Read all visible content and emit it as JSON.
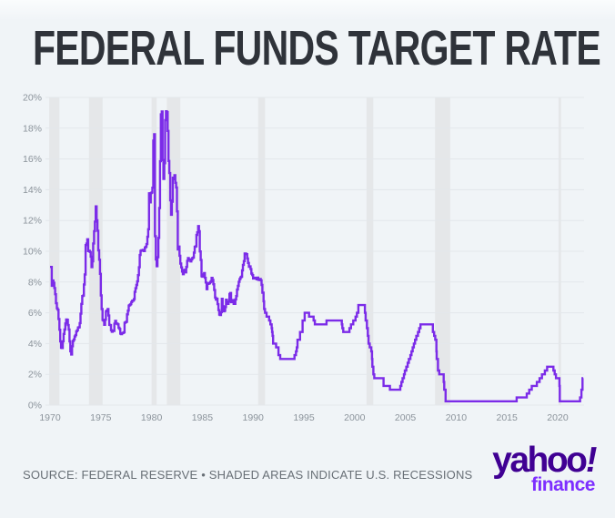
{
  "title": "FEDERAL FUNDS TARGET RATE",
  "footer": {
    "source_text": "SOURCE: FEDERAL RESERVE • SHADED AREAS INDICATE U.S. RECESSIONS"
  },
  "branding": {
    "yahoo": "yahoo",
    "bang": "!",
    "finance": "finance",
    "yahoo_color": "#400093",
    "finance_color": "#7d2eff"
  },
  "chart_data": {
    "type": "line",
    "title": "FEDERAL FUNDS TARGET RATE",
    "xlabel": "",
    "ylabel": "",
    "xlim": [
      1969.55,
      2022.6
    ],
    "ylim": [
      0,
      20
    ],
    "y_tick_step": 2,
    "y_tick_suffix": "%",
    "x_ticks": [
      1970,
      1975,
      1980,
      1985,
      1990,
      1995,
      2000,
      2005,
      2010,
      2015,
      2020
    ],
    "grid": true,
    "legend": "none",
    "line_color": "#7b2be8",
    "recession_band_color": "#e5e7e9",
    "grid_color": "#e3e7eb",
    "axis_label_color": "#8b939b",
    "recessions": [
      [
        1969.92,
        1970.92
      ],
      [
        1973.83,
        1975.17
      ],
      [
        1980.0,
        1980.5
      ],
      [
        1981.5,
        1982.83
      ],
      [
        1990.5,
        1991.17
      ],
      [
        2001.17,
        2001.83
      ],
      [
        2007.92,
        2009.42
      ],
      [
        2020.08,
        2020.33
      ]
    ],
    "series": [
      {
        "name": "Federal Funds Target Rate",
        "monthly": {
          "start_year": 1970,
          "values_by_year": [
            [
              8.98,
              8.98,
              7.76,
              8.1,
              7.95,
              7.61,
              7.21,
              6.62,
              6.29,
              6.2,
              5.6,
              4.9
            ],
            [
              4.14,
              3.72,
              3.71,
              4.15,
              4.63,
              4.91,
              5.31,
              5.57,
              5.55,
              5.2,
              4.91,
              4.14
            ],
            [
              3.5,
              3.29,
              3.83,
              4.17,
              4.27,
              4.46,
              4.55,
              4.8,
              4.87,
              5.04,
              5.06,
              5.33
            ],
            [
              5.94,
              6.58,
              7.09,
              7.12,
              7.84,
              8.49,
              10.4,
              10.5,
              10.78,
              10.01,
              10.03,
              9.95
            ],
            [
              9.65,
              8.97,
              9.35,
              10.51,
              11.31,
              11.93,
              12.92,
              12.01,
              11.34,
              10.06,
              9.45,
              8.53
            ],
            [
              7.13,
              6.24,
              5.54,
              5.49,
              5.22,
              5.55,
              6.1,
              6.14,
              6.24,
              5.82,
              5.22,
              5.2
            ],
            [
              4.87,
              4.77,
              4.84,
              4.82,
              5.29,
              5.48,
              5.31,
              5.29,
              5.25,
              5.03,
              4.95,
              4.65
            ],
            [
              4.61,
              4.68,
              4.69,
              4.73,
              5.35,
              5.39,
              5.42,
              5.9,
              6.14,
              6.47,
              6.51,
              6.56
            ],
            [
              6.7,
              6.78,
              6.79,
              6.89,
              7.36,
              7.6,
              7.81,
              8.04,
              8.45,
              8.96,
              9.76,
              10.03
            ],
            [
              10.07,
              10.06,
              10.09,
              10.01,
              10.24,
              10.29,
              10.47,
              10.94,
              11.43,
              13.77,
              13.18,
              13.78
            ],
            [
              13.82,
              14.13,
              17.19,
              17.61,
              10.98,
              9.47,
              9.03,
              9.61,
              10.87,
              12.81,
              15.85,
              18.9
            ],
            [
              19.08,
              15.93,
              14.7,
              15.72,
              18.52,
              19.1,
              19.04,
              17.82,
              15.87,
              15.08,
              13.31,
              12.37
            ],
            [
              13.22,
              14.78,
              14.68,
              14.94,
              14.45,
              14.15,
              12.59,
              10.12,
              10.31,
              9.71,
              9.2,
              8.95
            ],
            [
              8.68,
              8.51,
              8.77,
              8.8,
              8.63,
              8.98,
              9.37,
              9.56,
              9.45,
              9.48,
              9.34,
              9.47
            ],
            [
              9.56,
              9.59,
              9.91,
              10.29,
              10.32,
              11.06,
              11.23,
              11.64,
              11.3,
              9.99,
              9.43,
              8.38
            ],
            [
              8.35,
              8.5,
              8.58,
              8.27,
              7.97,
              7.53,
              7.88,
              7.9,
              7.92,
              7.99,
              8.05,
              8.27
            ],
            [
              8.14,
              7.86,
              7.48,
              6.99,
              6.85,
              6.92,
              6.56,
              6.17,
              5.89,
              5.85,
              6.04,
              6.91
            ],
            [
              6.43,
              6.1,
              6.13,
              6.37,
              6.85,
              6.73,
              6.58,
              6.73,
              7.22,
              7.29,
              6.69,
              6.77
            ],
            [
              6.83,
              6.58,
              6.58,
              6.87,
              7.09,
              7.51,
              7.75,
              8.01,
              8.19,
              8.3,
              8.35,
              8.76
            ],
            [
              9.12,
              9.36,
              9.85,
              9.84,
              9.81,
              9.53,
              9.24,
              8.99,
              9.02,
              8.84,
              8.55,
              8.45
            ],
            [
              8.23,
              8.24,
              8.28,
              8.26,
              8.18,
              8.29,
              8.15,
              8.13,
              8.2,
              8.11,
              7.81,
              7.31
            ]
          ]
        },
        "step_changes": [
          [
            1991.03,
            6.75
          ],
          [
            1991.08,
            6.25
          ],
          [
            1991.17,
            6.0
          ],
          [
            1991.33,
            5.75
          ],
          [
            1991.58,
            5.5
          ],
          [
            1991.7,
            5.25
          ],
          [
            1991.83,
            5.0
          ],
          [
            1991.87,
            4.75
          ],
          [
            1991.92,
            4.5
          ],
          [
            1991.97,
            4.0
          ],
          [
            1992.27,
            3.75
          ],
          [
            1992.5,
            3.25
          ],
          [
            1992.67,
            3.0
          ],
          [
            1994.08,
            3.25
          ],
          [
            1994.22,
            3.5
          ],
          [
            1994.3,
            3.75
          ],
          [
            1994.37,
            4.25
          ],
          [
            1994.62,
            4.75
          ],
          [
            1994.87,
            5.5
          ],
          [
            1995.08,
            6.0
          ],
          [
            1995.51,
            5.75
          ],
          [
            1995.96,
            5.5
          ],
          [
            1996.08,
            5.25
          ],
          [
            1997.23,
            5.5
          ],
          [
            1998.74,
            5.25
          ],
          [
            1998.79,
            5.0
          ],
          [
            1998.88,
            4.75
          ],
          [
            1999.49,
            5.0
          ],
          [
            1999.64,
            5.25
          ],
          [
            1999.87,
            5.5
          ],
          [
            2000.09,
            5.75
          ],
          [
            2000.22,
            6.0
          ],
          [
            2000.37,
            6.5
          ],
          [
            2001.01,
            6.0
          ],
          [
            2001.08,
            5.5
          ],
          [
            2001.21,
            5.0
          ],
          [
            2001.3,
            4.5
          ],
          [
            2001.37,
            4.0
          ],
          [
            2001.49,
            3.75
          ],
          [
            2001.64,
            3.5
          ],
          [
            2001.71,
            3.0
          ],
          [
            2001.75,
            2.5
          ],
          [
            2001.85,
            2.0
          ],
          [
            2001.94,
            1.75
          ],
          [
            2002.85,
            1.25
          ],
          [
            2003.48,
            1.0
          ],
          [
            2004.5,
            1.25
          ],
          [
            2004.61,
            1.5
          ],
          [
            2004.72,
            1.75
          ],
          [
            2004.86,
            2.0
          ],
          [
            2004.95,
            2.25
          ],
          [
            2005.09,
            2.5
          ],
          [
            2005.22,
            2.75
          ],
          [
            2005.34,
            3.0
          ],
          [
            2005.49,
            3.25
          ],
          [
            2005.6,
            3.5
          ],
          [
            2005.72,
            3.75
          ],
          [
            2005.83,
            4.0
          ],
          [
            2005.95,
            4.25
          ],
          [
            2006.08,
            4.5
          ],
          [
            2006.24,
            4.75
          ],
          [
            2006.36,
            5.0
          ],
          [
            2006.49,
            5.25
          ],
          [
            2007.71,
            4.75
          ],
          [
            2007.83,
            4.5
          ],
          [
            2007.94,
            4.25
          ],
          [
            2008.06,
            3.5
          ],
          [
            2008.08,
            3.0
          ],
          [
            2008.21,
            2.25
          ],
          [
            2008.33,
            2.0
          ],
          [
            2008.77,
            1.5
          ],
          [
            2008.83,
            1.0
          ],
          [
            2008.96,
            0.25
          ],
          [
            2015.96,
            0.5
          ],
          [
            2016.95,
            0.75
          ],
          [
            2017.2,
            1.0
          ],
          [
            2017.45,
            1.25
          ],
          [
            2017.95,
            1.5
          ],
          [
            2018.22,
            1.75
          ],
          [
            2018.45,
            2.0
          ],
          [
            2018.74,
            2.25
          ],
          [
            2018.96,
            2.5
          ],
          [
            2019.58,
            2.25
          ],
          [
            2019.71,
            2.0
          ],
          [
            2019.83,
            1.75
          ],
          [
            2020.17,
            1.25
          ],
          [
            2020.21,
            0.25
          ],
          [
            2022.21,
            0.5
          ],
          [
            2022.34,
            1.0
          ],
          [
            2022.45,
            1.75
          ],
          [
            2022.52,
            1.75
          ]
        ]
      }
    ]
  }
}
